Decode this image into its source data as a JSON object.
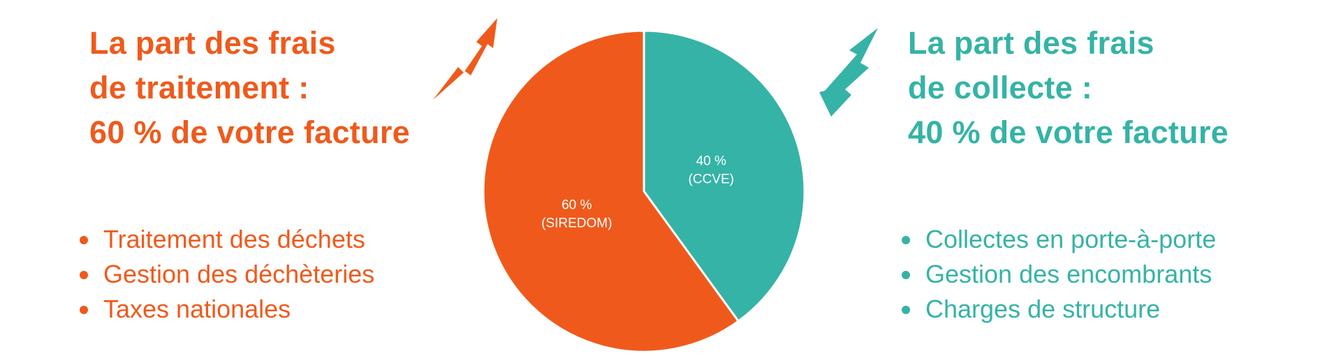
{
  "colors": {
    "treatment": "#ef5a1c",
    "collection": "#35b3a6"
  },
  "left": {
    "heading_lines": [
      "La part des frais",
      "de traitement :",
      "60 % de votre facture"
    ],
    "bullets": [
      "Traitement des déchets",
      "Gestion des déchèteries",
      "Taxes nationales"
    ],
    "arrow_icon": "zigzag-arrow-up-icon"
  },
  "right": {
    "heading_lines": [
      "La part des frais",
      "de collecte :",
      "40 % de votre facture"
    ],
    "bullets": [
      "Collectes en porte-à-porte",
      "Gestion des encombrants",
      "Charges de structure"
    ],
    "arrow_icon": "zigzag-arrow-down-icon"
  },
  "chart_data": {
    "type": "pie",
    "start": "top",
    "direction": "clockwise",
    "slices": [
      {
        "value": 40,
        "label_line1": "40 %",
        "label_line2": "(CCVE)",
        "color": "#35b3a6"
      },
      {
        "value": 60,
        "label_line1": "60 %",
        "label_line2": "(SIREDOM)",
        "color": "#ef5a1c"
      }
    ]
  }
}
